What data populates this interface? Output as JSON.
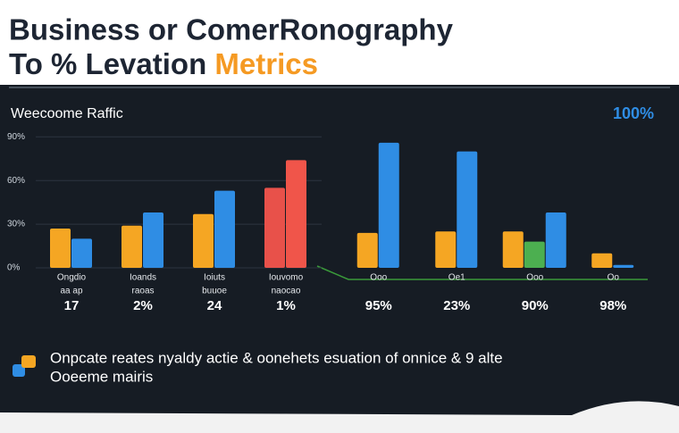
{
  "chart_data": {
    "type": "bar",
    "title_lines": [
      "Business or ComerRonography",
      "To % Levation "
    ],
    "title_highlight": "Metrics",
    "subtitle": "Weecoome Raffic",
    "badge": "100%",
    "categories": [
      "Ongdio",
      "Ioands",
      "Ioiuts",
      "Iouvomo",
      "Ooo",
      "Oe1",
      "Ooo",
      "Oo"
    ],
    "category_sublabels": [
      "aa ap",
      "raoas",
      "buuoe",
      "naocao",
      "",
      "",
      "",
      ""
    ],
    "category_figures": [
      "17",
      "2%",
      "24",
      "1%",
      "95%",
      "23%",
      "90%",
      "98%"
    ],
    "series": [
      {
        "color": "#f5a623",
        "values": [
          27,
          29,
          37,
          null,
          24,
          25,
          25,
          10
        ]
      },
      {
        "color": "#e8514a",
        "values": [
          null,
          null,
          null,
          55,
          null,
          null,
          null,
          null
        ]
      },
      {
        "color": "#4caf50",
        "values": [
          null,
          null,
          null,
          null,
          null,
          null,
          18,
          null
        ]
      },
      {
        "color": "#2f8de4",
        "values": [
          20,
          38,
          53,
          null,
          86,
          80,
          38,
          2
        ]
      },
      {
        "color": "#f0554a",
        "values": [
          null,
          null,
          null,
          74,
          null,
          null,
          null,
          null
        ]
      }
    ],
    "ylim": [
      0,
      100
    ],
    "yticks": [
      {
        "value": 0,
        "label": "0%"
      },
      {
        "value": 30,
        "label": "30%"
      },
      {
        "value": 60,
        "label": "60%"
      },
      {
        "value": 90,
        "label": "90%"
      }
    ],
    "grid": true,
    "caption_lines": [
      "Onpcate reates nyaldy actie & oonehets esuation of onnice & 9 alte",
      "Ooeeme mairis"
    ]
  }
}
